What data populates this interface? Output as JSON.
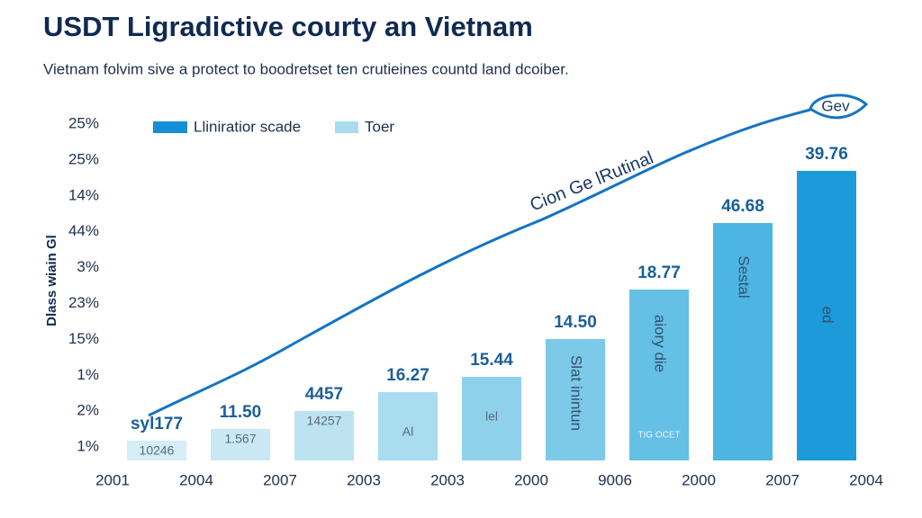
{
  "title": "USDT Ligradictive courty an Vietnam",
  "subtitle": "Vietnam folvim sive a protect to boodretset ten crutieines countd land dcoiber.",
  "legend": [
    {
      "label": "Lliniratior scade",
      "color": "#1590d6"
    },
    {
      "label": "Toer",
      "color": "#a9ddee"
    }
  ],
  "y_axis_title": "Dlass wiain Gl",
  "y_labels": [
    "25%",
    "25%",
    "14%",
    "44%",
    "3%",
    "23%",
    "15%",
    "1%",
    "2%",
    "1%"
  ],
  "x_labels": [
    "2001",
    "2004",
    "2007",
    "2003",
    "2003",
    "2000",
    "9006",
    "2000",
    "2007",
    "2004"
  ],
  "bars": [
    {
      "label": "syl177",
      "inner": "10246",
      "color": "#d4edf6"
    },
    {
      "label": "11.50",
      "inner": "1.567",
      "color": "#c9e8f3"
    },
    {
      "label": "4457",
      "inner": "14257",
      "color": "#bde3f1"
    },
    {
      "label": "16.27",
      "inner": "Al",
      "color": "#a9dcee"
    },
    {
      "label": "15.44",
      "inner": "lel",
      "color": "#8fd1ea"
    },
    {
      "label": "14.50",
      "inner": "Slat inintun",
      "color": "#7ccae8"
    },
    {
      "label": "18.77",
      "inner": "aiory die",
      "extra": "TIG OCET",
      "color": "#64c0e5"
    },
    {
      "label": "46.68",
      "inner": "Sestal",
      "color": "#4db5e2"
    },
    {
      "label": "39.76",
      "inner": "ed",
      "color": "#1d9ad9"
    }
  ],
  "line_label": "Cion Ge lRutinal",
  "badge": "Gev"
}
